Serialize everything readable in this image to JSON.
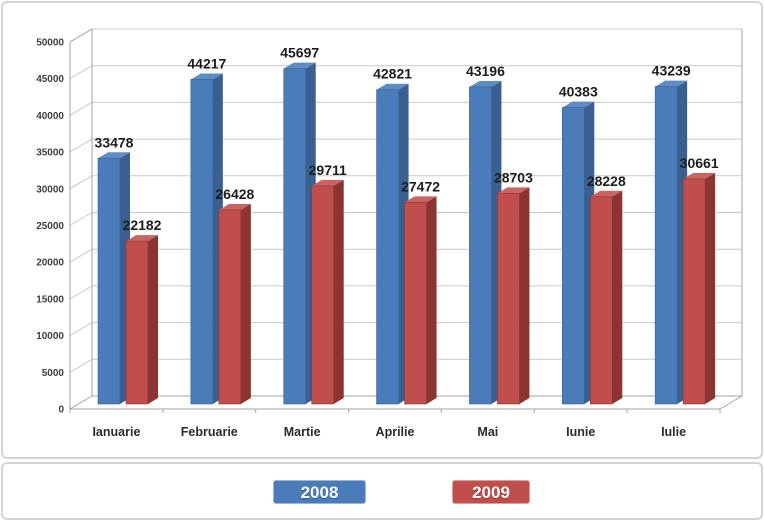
{
  "chart_data": {
    "type": "bar",
    "title": "",
    "xlabel": "",
    "ylabel": "",
    "categories": [
      "Ianuarie",
      "Februarie",
      "Martie",
      "Aprilie",
      "Mai",
      "Iunie",
      "Iulie"
    ],
    "series": [
      {
        "name": "2008",
        "color": "#4a7cba",
        "side_color": "#3a6092",
        "top_color": "#5e8cc4",
        "values": [
          33478,
          44217,
          45697,
          42821,
          43196,
          40383,
          43239
        ]
      },
      {
        "name": "2009",
        "color": "#bf4e4c",
        "side_color": "#8c3432",
        "top_color": "#ca6462",
        "values": [
          22182,
          26428,
          29711,
          27472,
          28703,
          28228,
          30661
        ]
      }
    ],
    "ylim": [
      0,
      50000
    ],
    "ytick_step": 5000,
    "yticks": [
      0,
      5000,
      10000,
      15000,
      20000,
      25000,
      30000,
      35000,
      40000,
      45000,
      50000
    ],
    "grid": true,
    "style": "3d",
    "legend_position": "bottom",
    "value_labels_shown": true
  },
  "colors": {
    "gridline": "#c9c9c9",
    "axis": "#a3a3a3",
    "value_label": "#1c1c1c",
    "tick_label": "#3f3f3f",
    "month_label": "#2b2b2b",
    "panel_border": "#d4d4d4",
    "background": "#ffffff"
  }
}
